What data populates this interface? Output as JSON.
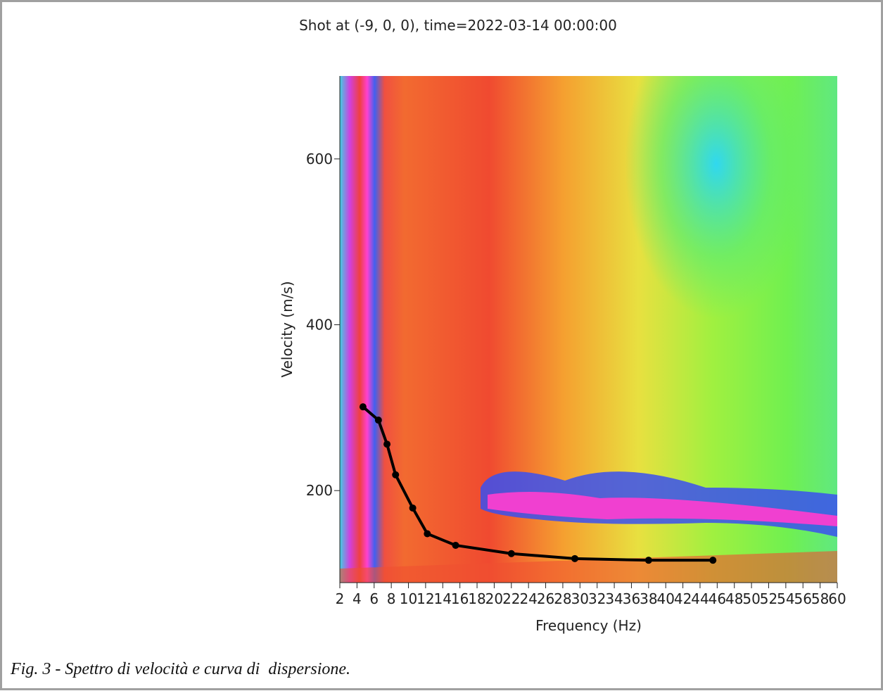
{
  "chart_data": {
    "type": "line",
    "title": "Shot at (-9, 0, 0), time=2022-03-14 00:00:00",
    "x_label": "Frequency (Hz)",
    "y_label": "Velocity (m/s)",
    "caption": "Fig. 3 - Spettro di velocità e curva di  dispersione.",
    "x": [
      4.7,
      6.5,
      7.5,
      8.5,
      10.5,
      12.2,
      15.5,
      22.0,
      29.4,
      38.0,
      45.5
    ],
    "series": [
      {
        "color": "#000000",
        "values": [
          301,
          285,
          256,
          219,
          179,
          148,
          134,
          124,
          118,
          116,
          116
        ]
      }
    ],
    "xlim": [
      2,
      60
    ],
    "xticks": [
      2,
      4,
      6,
      8,
      10,
      12,
      14,
      16,
      18,
      20,
      22,
      24,
      26,
      28,
      30,
      32,
      34,
      36,
      38,
      40,
      42,
      44,
      46,
      48,
      50,
      52,
      54,
      56,
      58,
      60
    ],
    "ylim": [
      89,
      700
    ],
    "yticks": [
      200,
      400,
      600
    ]
  }
}
